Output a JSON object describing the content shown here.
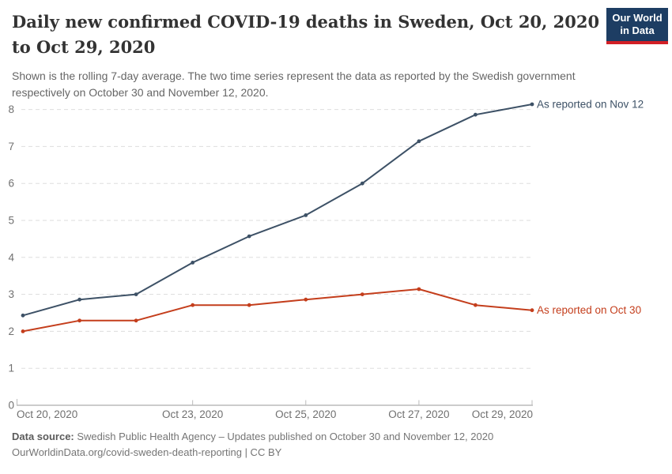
{
  "header": {
    "title": "Daily new confirmed COVID-19 deaths in Sweden, Oct 20, 2020 to Oct 29, 2020",
    "subtitle": "Shown is the rolling 7-day average. The two time series represent the data as reported by the Swedish government respectively on October 30 and November 12, 2020.",
    "logo": {
      "line1": "Our World",
      "line2": "in Data",
      "bg_color": "#1d3d63",
      "accent_color": "#d21f26"
    }
  },
  "chart_data": {
    "type": "line",
    "title": "Daily new confirmed COVID-19 deaths in Sweden, Oct 20, 2020 to Oct 29, 2020",
    "xlabel": "",
    "ylabel": "",
    "x": [
      "Oct 20, 2020",
      "Oct 21, 2020",
      "Oct 22, 2020",
      "Oct 23, 2020",
      "Oct 24, 2020",
      "Oct 25, 2020",
      "Oct 26, 2020",
      "Oct 27, 2020",
      "Oct 28, 2020",
      "Oct 29, 2020"
    ],
    "x_tick_indices": [
      0,
      3,
      5,
      7,
      9
    ],
    "x_tick_labels": [
      "Oct 20, 2020",
      "Oct 23, 2020",
      "Oct 25, 2020",
      "Oct 27, 2020",
      "Oct 29, 2020"
    ],
    "yticks": [
      0,
      1,
      2,
      3,
      4,
      5,
      6,
      7,
      8
    ],
    "ylim": [
      0,
      8.2
    ],
    "grid": "horizontal-dashed",
    "grid_color": "#dddddd",
    "axis_color": "#999999",
    "tick_label_color": "#707070",
    "legend_position": "line-end-labels",
    "series": [
      {
        "name": "As reported on Nov 12",
        "color": "#3d5166",
        "values": [
          2.43,
          2.86,
          3.0,
          3.86,
          4.57,
          5.14,
          6.0,
          7.14,
          7.86,
          8.14
        ]
      },
      {
        "name": "As reported on Oct 30",
        "color": "#c43e1c",
        "values": [
          2.0,
          2.29,
          2.29,
          2.71,
          2.71,
          2.86,
          3.0,
          3.14,
          2.71,
          2.57
        ]
      }
    ]
  },
  "footer": {
    "source_label": "Data source:",
    "source_text": " Swedish Public Health Agency – Updates published on October 30 and November 12, 2020",
    "link_line": "OurWorldinData.org/covid-sweden-death-reporting | CC BY"
  }
}
